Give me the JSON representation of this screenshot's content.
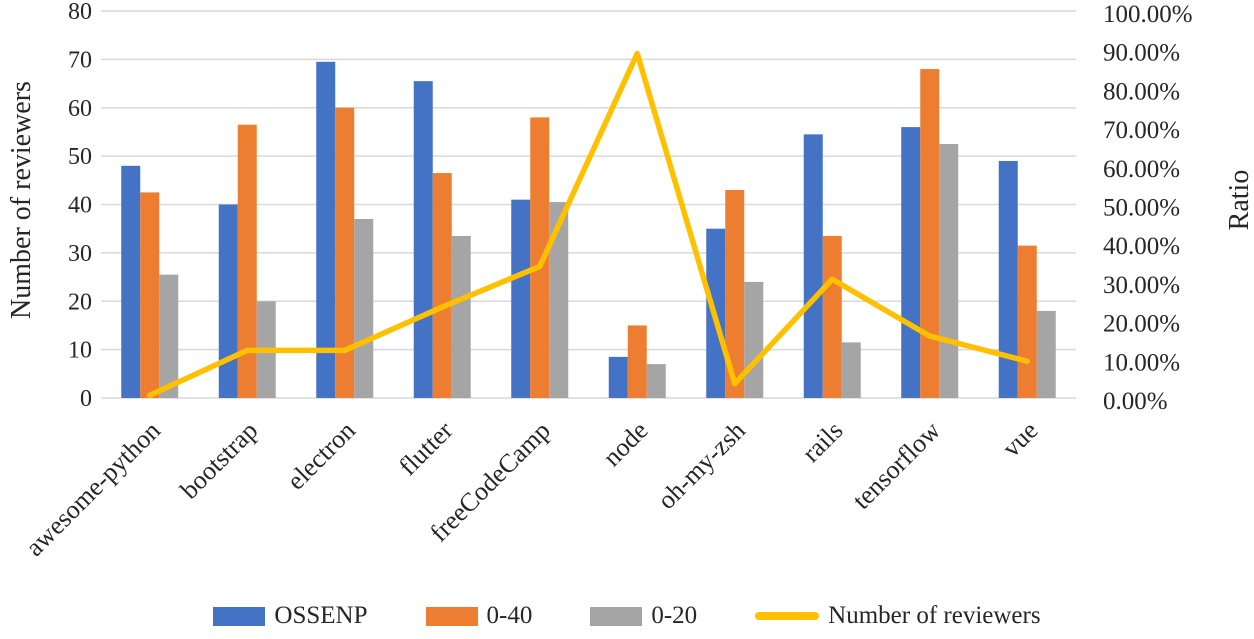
{
  "chart_data": {
    "type": "combo-bar-line",
    "title": "",
    "categories": [
      "awesome-python",
      "bootstrap",
      "electron",
      "flutter",
      "freeCodeCamp",
      "node",
      "oh-my-zsh",
      "rails",
      "tensorflow",
      "vue"
    ],
    "series": [
      {
        "name": "OSSENP",
        "type": "bar",
        "axis": "left",
        "color": "#4472C4",
        "values": [
          48,
          40,
          69.5,
          65.5,
          41,
          8.5,
          35,
          54.5,
          56,
          49
        ]
      },
      {
        "name": "0-40",
        "type": "bar",
        "axis": "left",
        "color": "#ED7D31",
        "values": [
          42.5,
          56.5,
          60,
          46.5,
          58,
          15,
          43,
          33.5,
          68,
          31.5
        ]
      },
      {
        "name": "0-20",
        "type": "bar",
        "axis": "left",
        "color": "#A5A5A5",
        "values": [
          25.5,
          20,
          37,
          33.5,
          40.5,
          7,
          24,
          11.5,
          52.5,
          18
        ]
      },
      {
        "name": "Number of reviewers",
        "type": "line",
        "axis": "right",
        "color": "#FFC000",
        "values": [
          0.7,
          12.3,
          12.3,
          23.5,
          34,
          89,
          3.7,
          30.7,
          16,
          9.5
        ]
      }
    ],
    "left_axis": {
      "title": "Number of reviewers",
      "min": 0,
      "max": 80,
      "step": 10,
      "tick_labels": [
        "0",
        "10",
        "20",
        "30",
        "40",
        "50",
        "60",
        "70",
        "80"
      ]
    },
    "right_axis": {
      "title": "Ratio",
      "min": 0,
      "max": 100,
      "step": 10,
      "tick_labels": [
        "0.00%",
        "10.00%",
        "20.00%",
        "30.00%",
        "40.00%",
        "50.00%",
        "60.00%",
        "70.00%",
        "80.00%",
        "90.00%",
        "100.00%"
      ]
    },
    "grid": true,
    "gridline_color": "#D9D9D9",
    "legend_position": "bottom"
  }
}
